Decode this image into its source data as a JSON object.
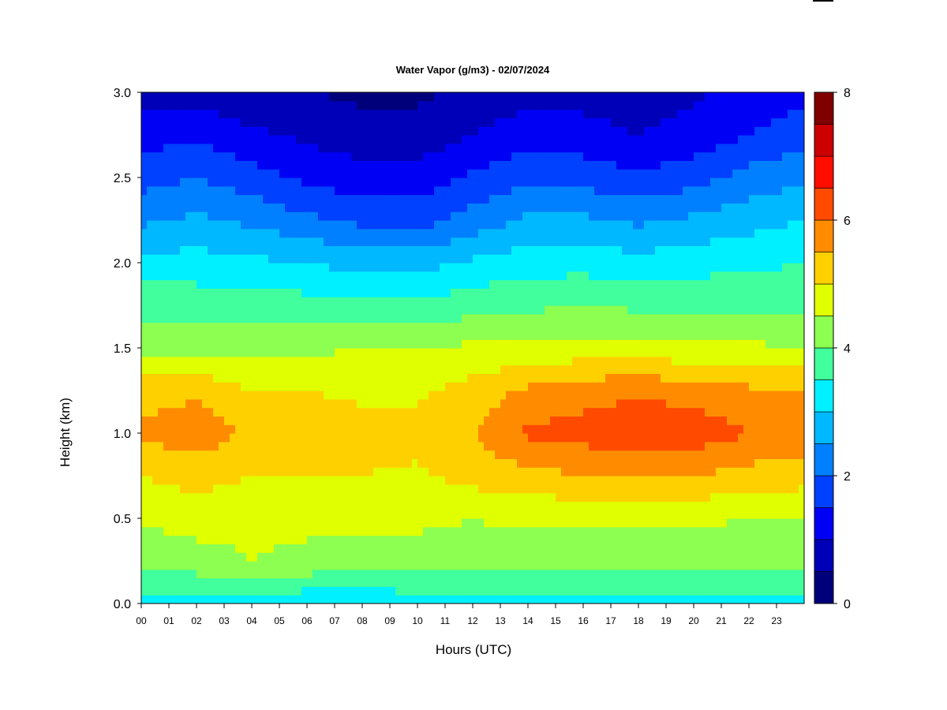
{
  "chart_data": {
    "type": "heatmap",
    "title": "Water Vapor (g/m3) - 02/07/2024",
    "xlabel": "Hours (UTC)",
    "ylabel": "Height (km)",
    "xlim": [
      0,
      24
    ],
    "ylim": [
      0,
      3.0
    ],
    "x_ticks": [
      "00",
      "01",
      "02",
      "03",
      "04",
      "05",
      "06",
      "07",
      "08",
      "09",
      "10",
      "11",
      "12",
      "13",
      "14",
      "15",
      "16",
      "17",
      "18",
      "19",
      "20",
      "21",
      "22",
      "23"
    ],
    "y_ticks": [
      "0.0",
      "0.5",
      "1.0",
      "1.5",
      "2.0",
      "2.5",
      "3.0"
    ],
    "height_km": [
      0.0,
      0.25,
      0.5,
      0.75,
      1.0,
      1.25,
      1.5,
      1.75,
      2.0,
      2.25,
      2.5,
      2.75,
      3.0
    ],
    "hours_utc": [
      0,
      2,
      4,
      6,
      8,
      10,
      12,
      14,
      16,
      18,
      20,
      22,
      24
    ],
    "water_vapor_g_m3": [
      [
        3.3,
        3.3,
        3.2,
        3.1,
        3.1,
        3.2,
        3.3,
        3.4,
        3.3,
        3.3,
        3.3,
        3.3,
        3.3
      ],
      [
        4.1,
        4.3,
        4.5,
        4.4,
        4.3,
        4.3,
        4.3,
        4.2,
        4.2,
        4.2,
        4.2,
        4.1,
        4.1
      ],
      [
        4.6,
        4.7,
        4.6,
        4.6,
        4.6,
        4.6,
        4.5,
        4.6,
        4.6,
        4.6,
        4.6,
        4.5,
        4.5
      ],
      [
        5.0,
        5.2,
        5.0,
        5.0,
        5.0,
        4.9,
        5.2,
        5.3,
        5.5,
        5.6,
        5.5,
        5.3,
        5.2
      ],
      [
        5.6,
        5.8,
        5.4,
        5.3,
        5.2,
        5.2,
        5.5,
        6.1,
        6.2,
        6.4,
        6.3,
        6.0,
        5.8
      ],
      [
        5.3,
        5.4,
        5.0,
        5.0,
        4.9,
        4.9,
        5.2,
        5.6,
        5.8,
        5.9,
        5.8,
        5.6,
        5.5
      ],
      [
        4.4,
        4.4,
        4.3,
        4.4,
        4.5,
        4.5,
        4.6,
        4.6,
        4.7,
        4.7,
        4.6,
        4.6,
        4.5
      ],
      [
        3.8,
        3.8,
        3.8,
        3.7,
        3.6,
        3.6,
        3.8,
        3.9,
        4.0,
        3.9,
        3.9,
        3.9,
        3.9
      ],
      [
        3.2,
        3.2,
        3.1,
        3.0,
        2.8,
        2.8,
        3.1,
        3.3,
        3.3,
        3.2,
        3.3,
        3.4,
        3.5
      ],
      [
        2.4,
        2.6,
        2.4,
        2.1,
        1.9,
        1.8,
        2.2,
        2.6,
        2.6,
        2.4,
        2.6,
        2.8,
        3.0
      ],
      [
        1.8,
        2.0,
        1.7,
        1.4,
        1.2,
        1.2,
        1.6,
        1.9,
        1.8,
        1.6,
        1.8,
        2.2,
        2.4
      ],
      [
        1.3,
        1.4,
        1.1,
        0.9,
        0.7,
        0.7,
        1.0,
        1.3,
        1.2,
        1.0,
        1.2,
        1.5,
        1.8
      ],
      [
        0.8,
        0.8,
        0.6,
        0.5,
        0.4,
        0.4,
        0.6,
        0.8,
        0.8,
        0.7,
        0.9,
        1.2,
        1.3
      ]
    ],
    "colorbar": {
      "min": 0,
      "max": 8,
      "tick_labels": [
        "0",
        "2",
        "4",
        "6",
        "8"
      ],
      "levels": [
        0,
        0.5,
        1.0,
        1.5,
        2.0,
        2.5,
        3.0,
        3.5,
        4.0,
        4.5,
        5.0,
        5.5,
        6.0,
        6.5,
        7.0,
        7.5,
        8.0
      ],
      "colors": [
        "#00007a",
        "#0000b8",
        "#0000f5",
        "#0040ff",
        "#0080ff",
        "#00b8ff",
        "#00f0ff",
        "#40ff9c",
        "#8cff50",
        "#e0ff00",
        "#ffd000",
        "#ff8c00",
        "#ff4a00",
        "#ff0d00",
        "#cc0000",
        "#800000"
      ]
    },
    "grid": false,
    "legend": "colorbar-right"
  }
}
